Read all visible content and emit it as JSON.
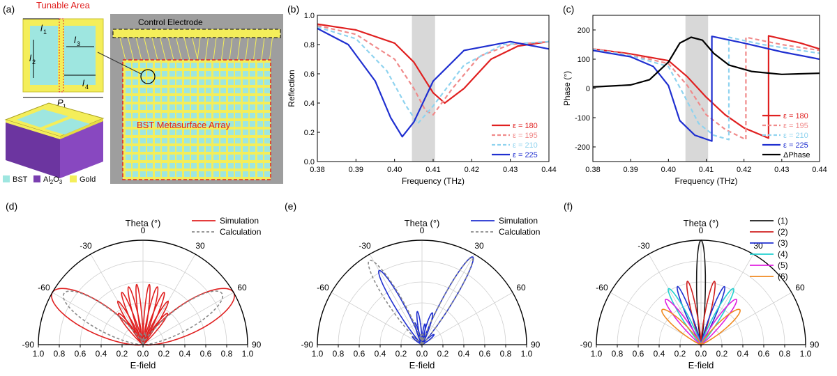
{
  "panel_a": {
    "label": "(a)",
    "tunable_area": "Tunable Area",
    "control_electrode": "Control Electrode",
    "array_label": "BST Metasurface Array",
    "dims": {
      "l1": "l",
      "l1_sub": "1",
      "l2": "l",
      "l2_sub": "2",
      "l3": "l",
      "l3_sub": "3",
      "l4": "l",
      "l4_sub": "4",
      "p1": "P",
      "p1_sub": "1"
    },
    "legend": [
      {
        "label": "BST",
        "color": "#9ee6e0"
      },
      {
        "label": "Al",
        "sub": "2",
        "label2": "O",
        "sub2": "3",
        "color": "#7a3fb0"
      },
      {
        "label": "Gold",
        "color": "#f4ee5a"
      }
    ]
  },
  "chart_data": [
    {
      "type": "line",
      "panel": "(b)",
      "xlabel": "Frequency (THz)",
      "ylabel": "Reflection",
      "xlim": [
        0.38,
        0.44
      ],
      "ylim": [
        0.0,
        1.0
      ],
      "xticks": [
        "0.38",
        "0.39",
        "0.40",
        "0.41",
        "0.42",
        "0.43",
        "0.44"
      ],
      "yticks": [
        "0.0",
        "0.2",
        "0.4",
        "0.6",
        "0.8",
        "1.0"
      ],
      "shaded_band": [
        0.4045,
        0.4105
      ],
      "legend_position": "bottom-right",
      "series": [
        {
          "name": "ε = 180",
          "color": "#e02020",
          "dash": false,
          "x": [
            0.38,
            0.39,
            0.4,
            0.405,
            0.41,
            0.413,
            0.418,
            0.425,
            0.432,
            0.44
          ],
          "y": [
            0.94,
            0.9,
            0.81,
            0.68,
            0.47,
            0.4,
            0.5,
            0.7,
            0.79,
            0.82
          ]
        },
        {
          "name": "ε = 195",
          "color": "#f08a8a",
          "dash": true,
          "x": [
            0.38,
            0.39,
            0.4,
            0.405,
            0.408,
            0.41,
            0.415,
            0.422,
            0.43,
            0.44
          ],
          "y": [
            0.93,
            0.87,
            0.7,
            0.5,
            0.35,
            0.32,
            0.5,
            0.72,
            0.8,
            0.82
          ]
        },
        {
          "name": "ε = 210",
          "color": "#8fd3ef",
          "dash": true,
          "x": [
            0.38,
            0.39,
            0.398,
            0.403,
            0.406,
            0.41,
            0.418,
            0.428,
            0.44
          ],
          "y": [
            0.92,
            0.84,
            0.62,
            0.38,
            0.26,
            0.38,
            0.66,
            0.8,
            0.82
          ]
        },
        {
          "name": "ε = 225",
          "color": "#1f2fd0",
          "dash": false,
          "x": [
            0.38,
            0.388,
            0.395,
            0.399,
            0.402,
            0.405,
            0.41,
            0.418,
            0.43,
            0.44
          ],
          "y": [
            0.91,
            0.8,
            0.55,
            0.3,
            0.17,
            0.27,
            0.55,
            0.76,
            0.82,
            0.77
          ]
        }
      ]
    },
    {
      "type": "line",
      "panel": "(c)",
      "xlabel": "Frequency (THz)",
      "ylabel": "Phase (°)",
      "xlim": [
        0.38,
        0.44
      ],
      "ylim": [
        -250,
        250
      ],
      "xticks": [
        "0.38",
        "0.39",
        "0.40",
        "0.41",
        "0.42",
        "0.43",
        "0.44"
      ],
      "yticks": [
        "-200",
        "-100",
        "0",
        "100",
        "200"
      ],
      "shaded_band": [
        0.4045,
        0.4105
      ],
      "legend_position": "bottom-right",
      "series": [
        {
          "name": "ε = 180",
          "color": "#e02020",
          "dash": false,
          "x": [
            0.38,
            0.39,
            0.4,
            0.405,
            0.41,
            0.415,
            0.42,
            0.4265,
            0.4265,
            0.435,
            0.44
          ],
          "y": [
            135,
            118,
            95,
            40,
            -30,
            -90,
            -135,
            -170,
            180,
            155,
            135
          ]
        },
        {
          "name": "ε = 195",
          "color": "#f08a8a",
          "dash": true,
          "x": [
            0.38,
            0.39,
            0.4,
            0.405,
            0.41,
            0.415,
            0.4205,
            0.4205,
            0.43,
            0.44
          ],
          "y": [
            135,
            115,
            85,
            10,
            -90,
            -140,
            -175,
            175,
            150,
            130
          ]
        },
        {
          "name": "ε = 210",
          "color": "#8fd3ef",
          "dash": true,
          "x": [
            0.38,
            0.39,
            0.4,
            0.404,
            0.408,
            0.412,
            0.416,
            0.416,
            0.425,
            0.44
          ],
          "y": [
            133,
            112,
            75,
            -20,
            -120,
            -160,
            -175,
            175,
            150,
            120
          ]
        },
        {
          "name": "ε = 225",
          "color": "#1f2fd0",
          "dash": false,
          "x": [
            0.38,
            0.39,
            0.396,
            0.4,
            0.403,
            0.407,
            0.4115,
            0.4115,
            0.42,
            0.43,
            0.44
          ],
          "y": [
            130,
            108,
            75,
            10,
            -110,
            -160,
            -180,
            178,
            155,
            125,
            100
          ]
        },
        {
          "name": "ΔPhase",
          "color": "#000000",
          "dash": false,
          "x": [
            0.38,
            0.39,
            0.395,
            0.4,
            0.403,
            0.406,
            0.409,
            0.412,
            0.416,
            0.422,
            0.43,
            0.44
          ],
          "y": [
            5,
            12,
            30,
            90,
            155,
            175,
            165,
            120,
            80,
            58,
            48,
            52
          ]
        }
      ]
    },
    {
      "type": "polar",
      "panel": "(d)",
      "title": "Theta (°)",
      "rlabel": "E-field",
      "angle_ticks": [
        "-90",
        "-60",
        "-30",
        "0",
        "30",
        "60",
        "90"
      ],
      "r_ticks": [
        "1.0",
        "0.8",
        "0.6",
        "0.4",
        "0.2",
        "0.0",
        "0.2",
        "0.4",
        "0.6",
        "0.8",
        "1.0"
      ],
      "legend_position": "top-right",
      "series": [
        {
          "name": "Simulation",
          "color": "#e02020",
          "dash": false,
          "lobes": [
            [
              -60,
              1.0,
              14
            ],
            [
              60,
              1.0,
              14
            ],
            [
              -38,
              0.38,
              5
            ],
            [
              -30,
              0.48,
              4
            ],
            [
              -22,
              0.54,
              4
            ],
            [
              -14,
              0.57,
              4
            ],
            [
              -6,
              0.58,
              3
            ],
            [
              6,
              0.58,
              3
            ],
            [
              14,
              0.57,
              4
            ],
            [
              22,
              0.54,
              4
            ],
            [
              30,
              0.48,
              4
            ],
            [
              38,
              0.38,
              5
            ]
          ]
        },
        {
          "name": "Calculation",
          "color": "#8a8a8a",
          "dash": true,
          "lobes": [
            [
              -57,
              0.9,
              12
            ],
            [
              57,
              0.9,
              12
            ],
            [
              -12,
              0.12,
              6
            ],
            [
              12,
              0.12,
              6
            ]
          ]
        }
      ]
    },
    {
      "type": "polar",
      "panel": "(e)",
      "title": "Theta (°)",
      "rlabel": "E-field",
      "angle_ticks": [
        "-90",
        "-60",
        "-30",
        "0",
        "30",
        "60",
        "90"
      ],
      "r_ticks": [
        "1.0",
        "0.8",
        "0.6",
        "0.4",
        "0.2",
        "0.0",
        "0.2",
        "0.4",
        "0.6",
        "0.8",
        "1.0"
      ],
      "legend_position": "top-right",
      "series": [
        {
          "name": "Simulation",
          "color": "#1f2fd0",
          "dash": false,
          "lobes": [
            [
              -30,
              0.82,
              5
            ],
            [
              30,
              0.97,
              5
            ],
            [
              -8,
              0.32,
              4
            ],
            [
              8,
              0.2,
              4
            ],
            [
              -18,
              0.22,
              4
            ],
            [
              18,
              0.32,
              5
            ],
            [
              -50,
              0.12,
              6
            ],
            [
              50,
              0.15,
              6
            ]
          ]
        },
        {
          "name": "Calculation",
          "color": "#8a8a8a",
          "dash": true,
          "lobes": [
            [
              -32,
              0.95,
              7
            ],
            [
              30,
              0.96,
              5
            ],
            [
              -5,
              0.1,
              4
            ],
            [
              5,
              0.1,
              4
            ]
          ]
        }
      ]
    },
    {
      "type": "polar",
      "panel": "(f)",
      "title": "Theta (°)",
      "rlabel": "E-field",
      "angle_ticks": [
        "-90",
        "-60",
        "-30",
        "0",
        "30",
        "60",
        "90"
      ],
      "r_ticks": [
        "1.0",
        "0.8",
        "0.6",
        "0.4",
        "0.2",
        "0.0",
        "0.2",
        "0.4",
        "0.6",
        "0.8",
        "1.0"
      ],
      "legend_position": "top-right",
      "series": [
        {
          "name": "(1)",
          "color": "#1a1a1a",
          "dash": false,
          "lobes": [
            [
              0,
              1.0,
              4
            ]
          ]
        },
        {
          "name": "(2)",
          "color": "#d01f1f",
          "dash": false,
          "lobes": [
            [
              -12,
              0.62,
              4
            ],
            [
              12,
              0.62,
              4
            ]
          ]
        },
        {
          "name": "(3)",
          "color": "#1f2fd0",
          "dash": false,
          "lobes": [
            [
              -22,
              0.6,
              4
            ],
            [
              22,
              0.6,
              4
            ]
          ]
        },
        {
          "name": "(4)",
          "color": "#22d0d0",
          "dash": false,
          "lobes": [
            [
              -30,
              0.62,
              5
            ],
            [
              30,
              0.62,
              5
            ]
          ]
        },
        {
          "name": "(5)",
          "color": "#e020e0",
          "dash": false,
          "lobes": [
            [
              -38,
              0.55,
              6
            ],
            [
              38,
              0.55,
              6
            ]
          ]
        },
        {
          "name": "(6)",
          "color": "#f08a20",
          "dash": false,
          "lobes": [
            [
              -48,
              0.5,
              8
            ],
            [
              48,
              0.5,
              8
            ]
          ]
        }
      ]
    }
  ]
}
